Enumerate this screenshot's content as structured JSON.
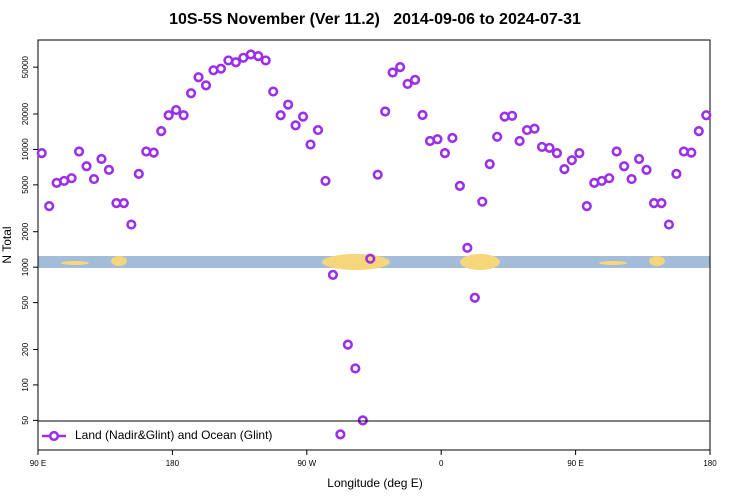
{
  "chart_data": {
    "type": "scatter",
    "title": "10S-5S November (Ver 11.2)   2014-09-06 to 2024-07-31",
    "xlabel": "Longitude (deg E)",
    "ylabel": "N Total",
    "xlim": [
      90,
      540
    ],
    "xticks": [
      {
        "value": 90,
        "label": "90 E"
      },
      {
        "value": 180,
        "label": "180"
      },
      {
        "value": 270,
        "label": "90 W"
      },
      {
        "value": 360,
        "label": "0"
      },
      {
        "value": 450,
        "label": "90 E"
      },
      {
        "value": 540,
        "label": "180"
      }
    ],
    "ylim": [
      28,
      85000
    ],
    "yscale": "log",
    "yticks": [
      50,
      100,
      200,
      500,
      1000,
      2000,
      5000,
      10000,
      20000,
      50000
    ],
    "legend": "lower left",
    "series": [
      {
        "name": "Land (Nadir&Glint) and Ocean (Glint)",
        "color": "#9b30e8",
        "x": [
          92.5,
          97.5,
          102.5,
          107.5,
          112.5,
          117.5,
          122.5,
          127.5,
          132.5,
          137.5,
          142.5,
          147.5,
          152.5,
          157.5,
          162.5,
          167.5,
          172.5,
          177.5,
          182.5,
          187.5,
          192.5,
          197.5,
          202.5,
          207.5,
          212.5,
          217.5,
          222.5,
          227.5,
          232.5,
          237.5,
          242.5,
          247.5,
          252.5,
          257.5,
          262.5,
          267.5,
          272.5,
          277.5,
          282.5,
          287.5,
          292.5,
          297.5,
          302.5,
          307.5,
          312.5,
          317.5,
          322.5,
          327.5,
          332.5,
          337.5,
          342.5,
          347.5,
          352.5,
          357.5,
          362.5,
          367.5,
          372.5,
          377.5,
          382.5,
          387.5,
          392.5,
          397.5,
          402.5,
          407.5,
          412.5,
          417.5,
          422.5,
          427.5,
          432.5,
          437.5,
          442.5,
          447.5,
          452.5,
          457.5,
          462.5,
          467.5,
          472.5,
          477.5,
          482.5,
          487.5,
          492.5,
          497.5,
          502.5,
          507.5,
          512.5,
          517.5,
          522.5,
          527.5,
          532.5,
          537.5
        ],
        "values": [
          9300,
          3300,
          5200,
          5400,
          5700,
          9600,
          7200,
          5600,
          8300,
          6700,
          3500,
          3500,
          2300,
          6200,
          9600,
          9400,
          14300,
          19500,
          21600,
          19500,
          30000,
          41000,
          35000,
          47000,
          48500,
          57000,
          55000,
          60000,
          64000,
          62000,
          57000,
          31000,
          19500,
          24000,
          16000,
          19000,
          11000,
          14600,
          5400,
          860,
          38,
          220,
          138,
          50,
          1180,
          6100,
          21000,
          45000,
          50000,
          36000,
          39000,
          19600,
          11800,
          12200,
          9300,
          12500,
          4900,
          1460,
          550,
          3600,
          7500,
          12800,
          19000,
          19300,
          11800,
          14600,
          15000,
          10500,
          10300,
          9300,
          6800,
          8100,
          9300,
          3300,
          5200,
          5400,
          5700,
          9600,
          7200,
          5600,
          8300,
          6700,
          3500,
          3500,
          2300,
          6200,
          9600,
          9400,
          14300,
          19500
        ]
      }
    ]
  }
}
